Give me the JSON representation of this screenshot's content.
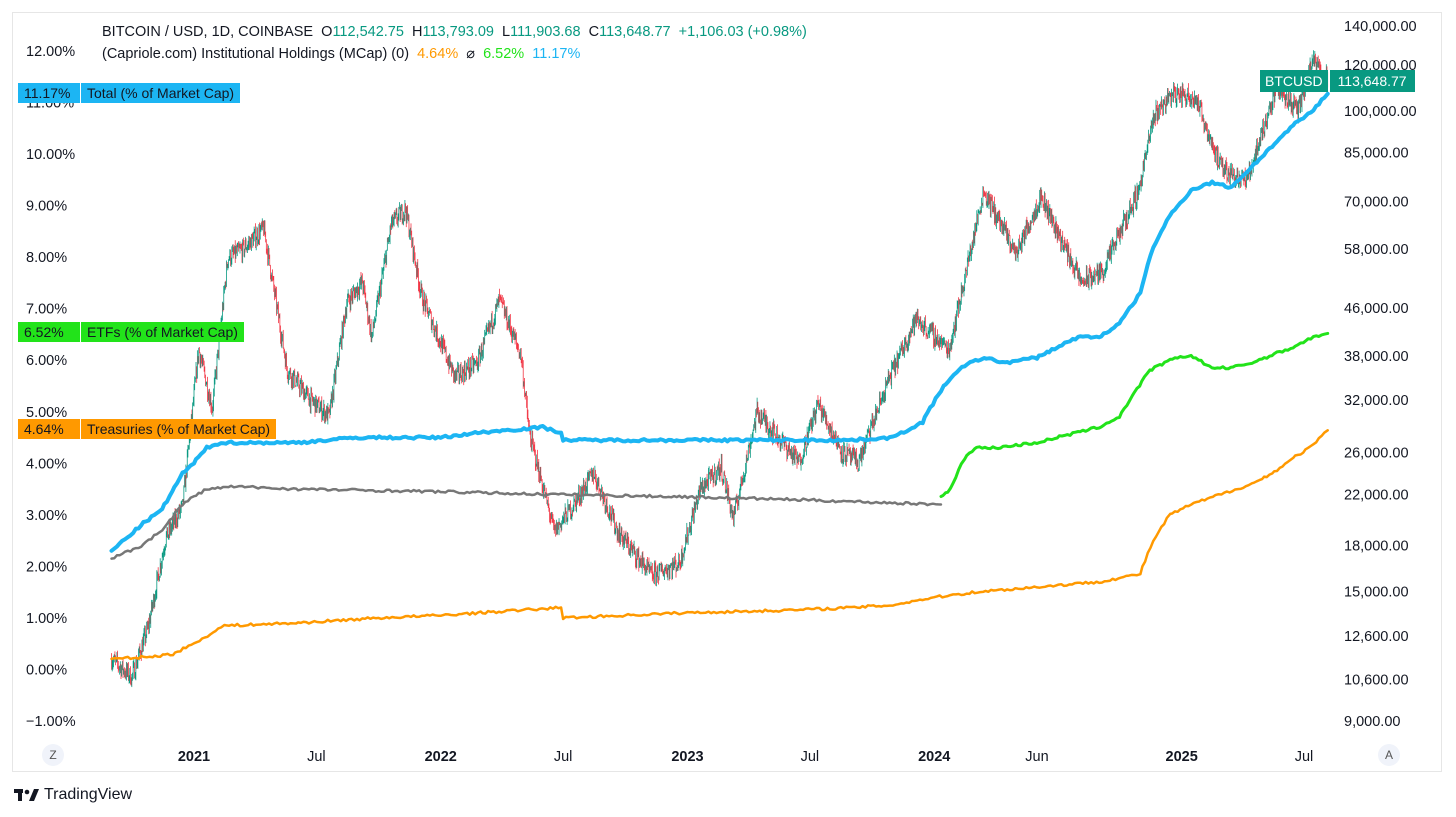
{
  "header": {
    "symbol": "BITCOIN / USD, 1D, COINBASE",
    "o_label": "O",
    "o_value": "112,542.75",
    "h_label": "H",
    "h_value": "113,793.09",
    "l_label": "L",
    "l_value": "111,903.68",
    "c_label": "C",
    "c_value": "113,648.77",
    "change": "+1,106.03 (+0.98%)",
    "indicator": "(Capriole.com) Institutional Holdings (MCap) (0)",
    "ind_val_1": "4.64%",
    "ind_sep": "⌀",
    "ind_val_2": "6.52%",
    "ind_val_3": "11.17%"
  },
  "labels": {
    "total_value": "11.17%",
    "total_name": "Total (% of Market Cap)",
    "etf_value": "6.52%",
    "etf_name": "ETFs (% of Market Cap)",
    "treasury_value": "4.64%",
    "treasury_name": "Treasuries (% of Market Cap)",
    "price_tag_name": "BTCUSD",
    "price_tag_value": "113,648.77"
  },
  "colors": {
    "total": "#1cb5f3",
    "etf": "#22e31a",
    "treasury": "#ff9900",
    "legacy": "#777777",
    "candle_up": "#089981",
    "candle_down": "#f23645",
    "tag": "#089981"
  },
  "footer": {
    "brand": "TradingView",
    "left_button": "Z",
    "right_button": "A"
  },
  "chart_data": {
    "type": "line",
    "x_ticks": [
      "2021",
      "Jul",
      "2022",
      "Jul",
      "2023",
      "Jul",
      "2024",
      "Jun",
      "2025",
      "Jul"
    ],
    "y_left": {
      "ticks": [
        "12.00%",
        "11.00%",
        "10.00%",
        "9.00%",
        "8.00%",
        "7.00%",
        "6.00%",
        "5.00%",
        "4.00%",
        "3.00%",
        "2.00%",
        "1.00%",
        "0.00%",
        "−1.00%"
      ],
      "range": [
        -1,
        12
      ],
      "unit": "%"
    },
    "y_right": {
      "ticks": [
        "140,000.00",
        "120,000.00",
        "100,000.00",
        "85,000.00",
        "70,000.00",
        "58,000.00",
        "46,000.00",
        "38,000.00",
        "32,000.00",
        "26,000.00",
        "22,000.00",
        "18,000.00",
        "15,000.00",
        "12,600.00",
        "10,600.00",
        "9,000.00"
      ],
      "scale": "log"
    },
    "series": [
      {
        "name": "Total (% of Market Cap)",
        "points": [
          [
            "2020-09-01",
            2.3
          ],
          [
            "2020-10-15",
            2.8
          ],
          [
            "2020-11-15",
            3.1
          ],
          [
            "2020-12-15",
            3.8
          ],
          [
            "2021-01-01",
            4.0
          ],
          [
            "2021-01-20",
            4.3
          ],
          [
            "2021-02-10",
            4.4
          ],
          [
            "2021-06-01",
            4.4
          ],
          [
            "2021-09-01",
            4.5
          ],
          [
            "2022-01-01",
            4.5
          ],
          [
            "2022-03-01",
            4.6
          ],
          [
            "2022-06-01",
            4.7
          ],
          [
            "2022-06-28",
            4.6
          ],
          [
            "2022-07-01",
            4.45
          ],
          [
            "2022-10-01",
            4.45
          ],
          [
            "2023-01-01",
            4.45
          ],
          [
            "2023-06-01",
            4.45
          ],
          [
            "2023-09-01",
            4.45
          ],
          [
            "2023-11-01",
            4.5
          ],
          [
            "2023-12-15",
            4.8
          ],
          [
            "2024-01-15",
            5.5
          ],
          [
            "2024-02-15",
            5.9
          ],
          [
            "2024-03-15",
            6.05
          ],
          [
            "2024-04-15",
            5.95
          ],
          [
            "2024-06-01",
            6.05
          ],
          [
            "2024-07-01",
            6.25
          ],
          [
            "2024-08-01",
            6.45
          ],
          [
            "2024-09-01",
            6.45
          ],
          [
            "2024-10-01",
            6.7
          ],
          [
            "2024-11-01",
            7.3
          ],
          [
            "2024-11-20",
            8.2
          ],
          [
            "2024-12-15",
            8.8
          ],
          [
            "2025-01-15",
            9.3
          ],
          [
            "2025-02-15",
            9.45
          ],
          [
            "2025-03-15",
            9.35
          ],
          [
            "2025-04-15",
            9.75
          ],
          [
            "2025-05-15",
            10.15
          ],
          [
            "2025-06-15",
            10.55
          ],
          [
            "2025-07-15",
            10.85
          ],
          [
            "2025-08-05",
            11.17
          ]
        ]
      },
      {
        "name": "ETFs (% of Market Cap)",
        "points": [
          [
            "2024-01-11",
            3.35
          ],
          [
            "2024-01-25",
            3.5
          ],
          [
            "2024-02-15",
            4.1
          ],
          [
            "2024-03-01",
            4.3
          ],
          [
            "2024-04-01",
            4.3
          ],
          [
            "2024-05-01",
            4.35
          ],
          [
            "2024-06-01",
            4.4
          ],
          [
            "2024-07-01",
            4.5
          ],
          [
            "2024-08-01",
            4.6
          ],
          [
            "2024-09-01",
            4.7
          ],
          [
            "2024-10-01",
            4.9
          ],
          [
            "2024-10-20",
            5.3
          ],
          [
            "2024-11-15",
            5.8
          ],
          [
            "2024-12-15",
            6.0
          ],
          [
            "2025-01-15",
            6.1
          ],
          [
            "2025-02-15",
            5.85
          ],
          [
            "2025-03-15",
            5.85
          ],
          [
            "2025-04-15",
            5.95
          ],
          [
            "2025-05-15",
            6.1
          ],
          [
            "2025-06-15",
            6.25
          ],
          [
            "2025-07-15",
            6.45
          ],
          [
            "2025-08-05",
            6.52
          ]
        ]
      },
      {
        "name": "Treasuries (% of Market Cap)",
        "points": [
          [
            "2020-09-01",
            0.2
          ],
          [
            "2020-11-01",
            0.25
          ],
          [
            "2020-12-01",
            0.3
          ],
          [
            "2021-01-01",
            0.5
          ],
          [
            "2021-02-15",
            0.85
          ],
          [
            "2021-06-01",
            0.9
          ],
          [
            "2021-10-01",
            1.0
          ],
          [
            "2022-01-01",
            1.05
          ],
          [
            "2022-03-01",
            1.1
          ],
          [
            "2022-06-28",
            1.2
          ],
          [
            "2022-07-01",
            1.0
          ],
          [
            "2022-10-01",
            1.05
          ],
          [
            "2023-01-01",
            1.1
          ],
          [
            "2023-06-01",
            1.15
          ],
          [
            "2023-09-01",
            1.2
          ],
          [
            "2023-11-01",
            1.25
          ],
          [
            "2024-01-01",
            1.4
          ],
          [
            "2024-03-01",
            1.5
          ],
          [
            "2024-06-01",
            1.6
          ],
          [
            "2024-09-01",
            1.7
          ],
          [
            "2024-11-01",
            1.85
          ],
          [
            "2024-11-20",
            2.5
          ],
          [
            "2024-12-15",
            3.0
          ],
          [
            "2025-01-15",
            3.2
          ],
          [
            "2025-03-01",
            3.4
          ],
          [
            "2025-04-15",
            3.6
          ],
          [
            "2025-05-15",
            3.8
          ],
          [
            "2025-06-15",
            4.1
          ],
          [
            "2025-07-15",
            4.35
          ],
          [
            "2025-08-05",
            4.64
          ]
        ]
      },
      {
        "points": [
          [
            "2020-09-01",
            2.15
          ],
          [
            "2020-10-15",
            2.4
          ],
          [
            "2020-11-15",
            2.7
          ],
          [
            "2020-12-15",
            3.2
          ],
          [
            "2021-01-01",
            3.35
          ],
          [
            "2021-01-20",
            3.5
          ],
          [
            "2021-03-01",
            3.55
          ],
          [
            "2021-06-01",
            3.5
          ],
          [
            "2022-01-01",
            3.45
          ],
          [
            "2022-06-01",
            3.4
          ],
          [
            "2023-01-01",
            3.35
          ],
          [
            "2023-06-01",
            3.3
          ],
          [
            "2024-01-11",
            3.2
          ]
        ]
      },
      {
        "name": "BTCUSD",
        "scale": "right",
        "points": [
          [
            "2020-09-01",
            11500
          ],
          [
            "2020-10-01",
            10700
          ],
          [
            "2020-10-25",
            13000
          ],
          [
            "2020-11-20",
            18500
          ],
          [
            "2020-12-15",
            21000
          ],
          [
            "2021-01-08",
            39000
          ],
          [
            "2021-01-28",
            31000
          ],
          [
            "2021-02-20",
            56000
          ],
          [
            "2021-03-15",
            58000
          ],
          [
            "2021-04-14",
            63000
          ],
          [
            "2021-05-19",
            36000
          ],
          [
            "2021-06-22",
            32000
          ],
          [
            "2021-07-20",
            30000
          ],
          [
            "2021-08-15",
            47000
          ],
          [
            "2021-09-07",
            51000
          ],
          [
            "2021-09-21",
            41000
          ],
          [
            "2021-10-20",
            64000
          ],
          [
            "2021-11-10",
            68000
          ],
          [
            "2021-12-04",
            48000
          ],
          [
            "2022-01-22",
            35000
          ],
          [
            "2022-02-24",
            37000
          ],
          [
            "2022-03-29",
            47500
          ],
          [
            "2022-04-30",
            38000
          ],
          [
            "2022-05-12",
            28000
          ],
          [
            "2022-06-18",
            19000
          ],
          [
            "2022-07-15",
            21000
          ],
          [
            "2022-08-15",
            24000
          ],
          [
            "2022-09-20",
            19000
          ],
          [
            "2022-11-09",
            16000
          ],
          [
            "2022-12-20",
            16800
          ],
          [
            "2023-01-20",
            22500
          ],
          [
            "2023-02-20",
            24500
          ],
          [
            "2023-03-10",
            20000
          ],
          [
            "2023-04-14",
            30500
          ],
          [
            "2023-06-15",
            25000
          ],
          [
            "2023-07-13",
            31500
          ],
          [
            "2023-08-18",
            26000
          ],
          [
            "2023-09-11",
            25000
          ],
          [
            "2023-10-25",
            34500
          ],
          [
            "2023-12-05",
            44000
          ],
          [
            "2024-01-23",
            39000
          ],
          [
            "2024-03-14",
            73000
          ],
          [
            "2024-05-01",
            57000
          ],
          [
            "2024-06-07",
            71500
          ],
          [
            "2024-08-05",
            51000
          ],
          [
            "2024-09-06",
            53000
          ],
          [
            "2024-10-29",
            73000
          ],
          [
            "2024-11-22",
            99000
          ],
          [
            "2024-12-17",
            107000
          ],
          [
            "2025-01-21",
            106000
          ],
          [
            "2025-02-28",
            80000
          ],
          [
            "2025-04-08",
            76000
          ],
          [
            "2025-05-22",
            111000
          ],
          [
            "2025-06-22",
            100000
          ],
          [
            "2025-07-14",
            122000
          ],
          [
            "2025-08-05",
            113648.77
          ]
        ]
      }
    ]
  }
}
